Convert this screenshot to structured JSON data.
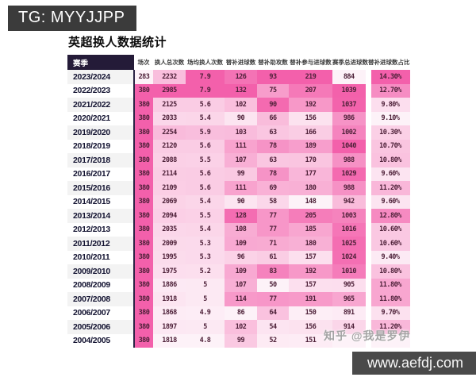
{
  "badge": {
    "text": "TG: MYYJJPP"
  },
  "title": "英超换人数据统计",
  "watermark": "知乎 @我是罗伊",
  "footer": {
    "url": "www.aefdj.com"
  },
  "colors": {
    "heat_low": "#fdf2f8",
    "heat_high": "#f360ab",
    "header_dark_bg": "#241b38",
    "badge_bg": "#3b3b3b",
    "footer_bg": "#4a4a4a"
  },
  "chart_data": {
    "type": "table",
    "title": "英超换人数据统计",
    "legend_note": "heatmap shading per column: light = column min, deep pink = column max",
    "columns": [
      "赛季",
      "场次",
      "换人总次数",
      "场均换人次数",
      "替补进球数",
      "替补助攻数",
      "替补参与进球数",
      "赛季总进球数",
      "替补进球数占比"
    ],
    "rows": [
      [
        "2023/2024",
        283,
        2232,
        7.9,
        126,
        93,
        219,
        884,
        "14.30%"
      ],
      [
        "2022/2023",
        380,
        2985,
        7.9,
        132,
        75,
        207,
        1039,
        "12.70%"
      ],
      [
        "2021/2022",
        380,
        2125,
        5.6,
        102,
        90,
        192,
        1037,
        "9.80%"
      ],
      [
        "2020/2021",
        380,
        2033,
        5.4,
        90,
        66,
        156,
        986,
        "9.10%"
      ],
      [
        "2019/2020",
        380,
        2254,
        5.9,
        103,
        63,
        166,
        1002,
        "10.30%"
      ],
      [
        "2018/2019",
        380,
        2120,
        5.6,
        111,
        78,
        189,
        1040,
        "10.70%"
      ],
      [
        "2017/2018",
        380,
        2088,
        5.5,
        107,
        63,
        170,
        988,
        "10.80%"
      ],
      [
        "2016/2017",
        380,
        2114,
        5.6,
        99,
        78,
        177,
        1029,
        "9.60%"
      ],
      [
        "2015/2016",
        380,
        2109,
        5.6,
        111,
        69,
        180,
        988,
        "11.20%"
      ],
      [
        "2014/2015",
        380,
        2069,
        5.4,
        90,
        58,
        148,
        942,
        "9.60%"
      ],
      [
        "2013/2014",
        380,
        2094,
        5.5,
        128,
        77,
        205,
        1003,
        "12.80%"
      ],
      [
        "2012/2013",
        380,
        2035,
        5.4,
        108,
        77,
        185,
        1016,
        "10.60%"
      ],
      [
        "2011/2012",
        380,
        2009,
        5.3,
        109,
        71,
        180,
        1025,
        "10.60%"
      ],
      [
        "2010/2011",
        380,
        1995,
        5.3,
        96,
        61,
        157,
        1024,
        "9.40%"
      ],
      [
        "2009/2010",
        380,
        1975,
        5.2,
        109,
        83,
        192,
        1010,
        "10.80%"
      ],
      [
        "2008/2009",
        380,
        1886,
        5,
        107,
        50,
        157,
        905,
        "11.80%"
      ],
      [
        "2007/2008",
        380,
        1918,
        5,
        114,
        77,
        191,
        965,
        "11.80%"
      ],
      [
        "2006/2007",
        380,
        1868,
        4.9,
        86,
        64,
        150,
        891,
        "9.70%"
      ],
      [
        "2005/2006",
        380,
        1897,
        5,
        102,
        54,
        156,
        914,
        "11.20%"
      ],
      [
        "2004/2005",
        380,
        1818,
        4.8,
        99,
        52,
        151,
        null,
        null
      ]
    ]
  }
}
